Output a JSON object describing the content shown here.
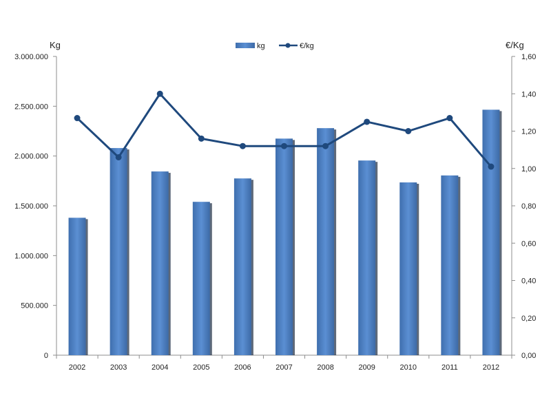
{
  "chart_data": {
    "type": "bar",
    "categories": [
      "2002",
      "2003",
      "2004",
      "2005",
      "2006",
      "2007",
      "2008",
      "2009",
      "2010",
      "2011",
      "2012"
    ],
    "series": [
      {
        "name": "kg",
        "type": "bar",
        "axis": "left",
        "color": "#4f81bd",
        "values": [
          1380000,
          2080000,
          1845000,
          1540000,
          1775000,
          2175000,
          2280000,
          1955000,
          1735000,
          1805000,
          2465000
        ]
      },
      {
        "name": "€/kg",
        "type": "line",
        "axis": "right",
        "color": "#1f497d",
        "values": [
          1.27,
          1.06,
          1.4,
          1.16,
          1.12,
          1.12,
          1.12,
          1.25,
          1.2,
          1.27,
          1.01
        ]
      }
    ],
    "ylabel": "Kg",
    "y2label": "€/Kg",
    "ylim": [
      0,
      3000000
    ],
    "y2lim": [
      0,
      1.6
    ],
    "yticks": [
      "0",
      "500.000",
      "1.000.000",
      "1.500.000",
      "2.000.000",
      "2.500.000",
      "3.000.000"
    ],
    "y2ticks": [
      "0,00",
      "0,20",
      "0,40",
      "0,60",
      "0,80",
      "1,00",
      "1,20",
      "1,40",
      "1,60"
    ],
    "legend_position": "top",
    "grid": false
  }
}
